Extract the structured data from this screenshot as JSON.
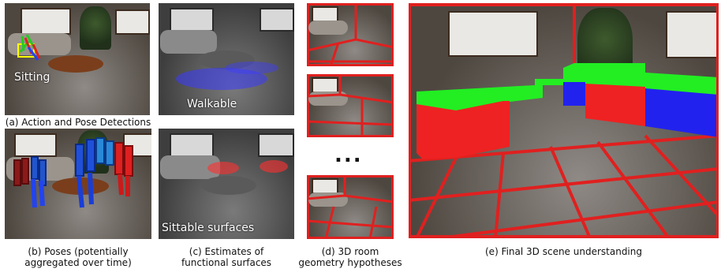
{
  "figure": {
    "panel_a": {
      "overlay_label": "Sitting",
      "caption": "(a) Action and Pose Detections"
    },
    "panel_b": {
      "caption_line1": "(b) Poses (potentially",
      "caption_line2": "aggregated over time)"
    },
    "panel_walkable": {
      "overlay_label": "Walkable"
    },
    "panel_c": {
      "overlay_label": "Sittable surfaces",
      "caption_line1": "(c) Estimates of",
      "caption_line2": "functional surfaces"
    },
    "panel_d": {
      "ellipsis": "...",
      "caption_line1": "(d) 3D room",
      "caption_line2": "geometry hypotheses"
    },
    "panel_e": {
      "caption": "(e) Final 3D scene understanding"
    },
    "colors": {
      "walkable_highlight": "#3b3bff",
      "sittable_highlight": "#ff3030",
      "room_edges": "#e0201f",
      "occupied_top": "#22ee22",
      "occupied_front": "#ee2222",
      "occupied_side": "#2222ee"
    }
  }
}
